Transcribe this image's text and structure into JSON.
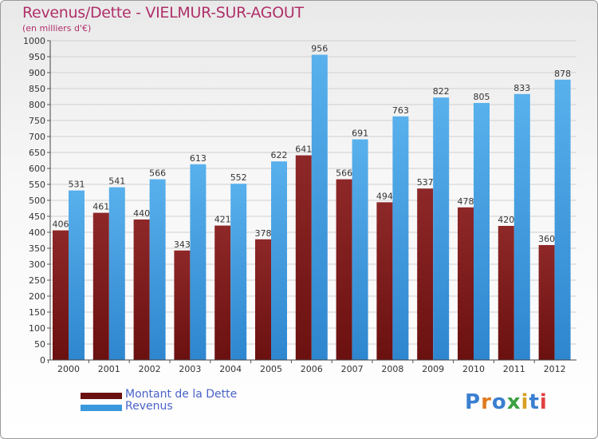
{
  "title": "Revenus/Dette - VIELMUR-SUR-AGOUT",
  "subtitle": "(en milliers d'€)",
  "colors": {
    "dette": "#6b1010",
    "dette_light": "#8e2828",
    "revenus": "#2e86cf",
    "revenus_light": "#58b0ec",
    "label_text": "#333333"
  },
  "legend": [
    {
      "name": "Montant de la Dette",
      "color": "#6b1010"
    },
    {
      "name": "Revenus",
      "color": "#3a98dc"
    }
  ],
  "logo": {
    "letters": [
      "P",
      "r",
      "o",
      "x",
      "i",
      "t",
      "i"
    ],
    "colors": [
      "#3a7fd0",
      "#e07a20",
      "#3a7fd0",
      "#3aa040",
      "#d8a020",
      "#3a7fd0",
      "#e04040"
    ]
  },
  "chart_data": {
    "type": "bar",
    "categories": [
      "2000",
      "2001",
      "2002",
      "2003",
      "2004",
      "2005",
      "2006",
      "2007",
      "2008",
      "2009",
      "2010",
      "2011",
      "2012"
    ],
    "series": [
      {
        "name": "Montant de la Dette",
        "values": [
          406,
          461,
          440,
          343,
          421,
          378,
          641,
          566,
          494,
          537,
          478,
          420,
          360
        ]
      },
      {
        "name": "Revenus",
        "values": [
          531,
          541,
          566,
          613,
          552,
          622,
          956,
          691,
          763,
          822,
          805,
          833,
          878
        ]
      }
    ],
    "ylim": [
      0,
      1000
    ],
    "ytick_step": 50,
    "grid": true
  }
}
